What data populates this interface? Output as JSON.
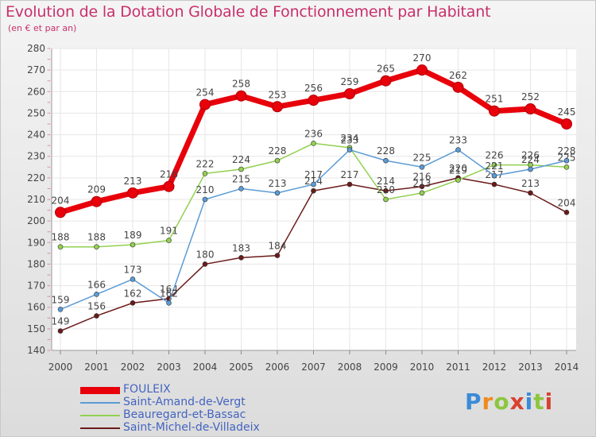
{
  "title": "Evolution de la Dotation Globale de Fonctionnement par Habitant",
  "subtitle": "(en € et par an)",
  "logo": {
    "text": "Proxiti"
  },
  "chart_data": {
    "type": "line",
    "x": [
      "2000",
      "2001",
      "2002",
      "2003",
      "2004",
      "2005",
      "2006",
      "2007",
      "2008",
      "2009",
      "2010",
      "2011",
      "2012",
      "2013",
      "2014"
    ],
    "ylim": [
      140,
      280
    ],
    "yticks": [
      140,
      150,
      160,
      170,
      180,
      190,
      200,
      210,
      220,
      230,
      240,
      250,
      260,
      270,
      280
    ],
    "grid": true,
    "legend_position": "bottom",
    "series": [
      {
        "name": "FOULEIX",
        "color": "#e8000b",
        "values": [
          204,
          209,
          213,
          216,
          254,
          258,
          253,
          256,
          259,
          265,
          270,
          262,
          251,
          252,
          245
        ]
      },
      {
        "name": "Saint-Amand-de-Vergt",
        "color": "#5b9bd5",
        "values": [
          159,
          166,
          173,
          162,
          210,
          215,
          213,
          217,
          233,
          228,
          225,
          233,
          221,
          224,
          228
        ]
      },
      {
        "name": "Beauregard-et-Bassac",
        "color": "#92d050",
        "values": [
          188,
          188,
          189,
          191,
          222,
          224,
          228,
          236,
          234,
          210,
          213,
          219,
          226,
          226,
          225
        ]
      },
      {
        "name": "Saint-Michel-de-Villadeix",
        "color": "#6b1a1a",
        "values": [
          149,
          156,
          162,
          164,
          180,
          183,
          184,
          214,
          217,
          214,
          216,
          220,
          217,
          213,
          204
        ]
      }
    ]
  }
}
